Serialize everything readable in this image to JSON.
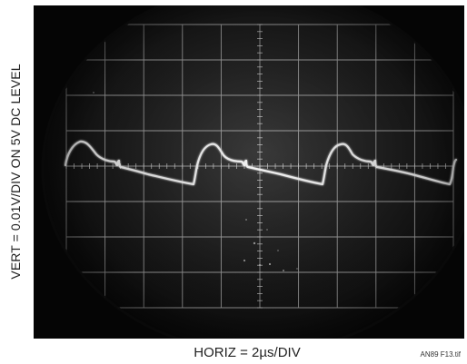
{
  "figure": {
    "ylabel": "VERT = 0.01V/DIV ON 5V DC LEVEL",
    "xlabel": "HORIZ = 2µs/DIV",
    "figure_id": "AN89 F13.tif"
  },
  "colors": {
    "screen_background": "#050505",
    "graticule": "#b8b8b8",
    "trace": "#f2f2f2",
    "label_text": "#222222"
  },
  "scope_display": {
    "grid": "on",
    "horizontal_divisions": 10,
    "vertical_divisions": 8
  }
}
